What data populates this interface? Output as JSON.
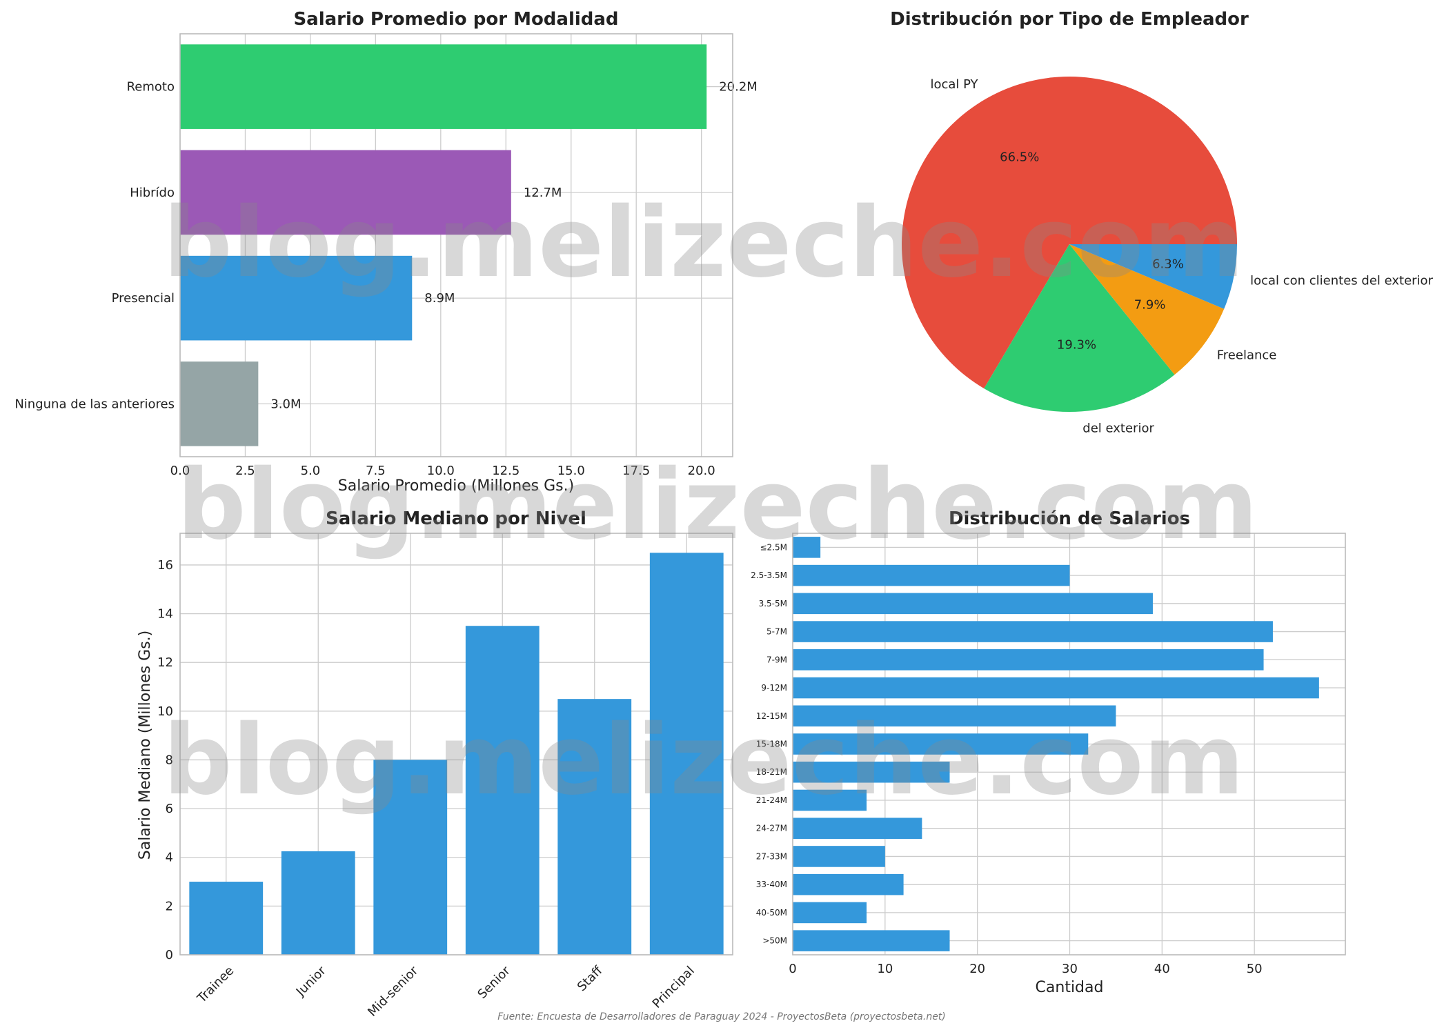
{
  "watermark": "blog.melizeche.com",
  "source": "Fuente: Encuesta de Desarrolladores de Paraguay 2024 - ProyectosBeta (proyectosbeta.net)",
  "chart_data": [
    {
      "id": "modalidad",
      "type": "bar",
      "orientation": "horizontal",
      "title": "Salario Promedio por Modalidad",
      "xlabel": "Salario Promedio (Millones Gs.)",
      "ylabel": "",
      "categories": [
        "Remoto",
        "Hibrído",
        "Presencial",
        "Ninguna de las anteriores"
      ],
      "values": [
        20.2,
        12.7,
        8.9,
        3.0
      ],
      "value_labels": [
        "20.2M",
        "12.7M",
        "8.9M",
        "3.0M"
      ],
      "colors": [
        "#2ecc71",
        "#9b59b6",
        "#3498db",
        "#95a5a6"
      ],
      "xlim": [
        0,
        21.2
      ],
      "xticks": [
        0,
        2.5,
        5,
        7.5,
        10,
        12.5,
        15,
        17.5,
        20
      ],
      "xtick_labels": [
        "0.0",
        "2.5",
        "5.0",
        "7.5",
        "10.0",
        "12.5",
        "15.0",
        "17.5",
        "20.0"
      ],
      "grid": true
    },
    {
      "id": "empleador",
      "type": "pie",
      "title": "Distribución por Tipo de Empleador",
      "labels": [
        "local PY",
        "del exterior",
        "Freelance",
        "local con clientes del exterior"
      ],
      "values": [
        66.5,
        19.3,
        7.9,
        6.3
      ],
      "pct_labels": [
        "66.5%",
        "19.3%",
        "7.9%",
        "6.3%"
      ],
      "colors": [
        "#e74c3c",
        "#2ecc71",
        "#f39c12",
        "#3498db"
      ]
    },
    {
      "id": "nivel",
      "type": "bar",
      "orientation": "vertical",
      "title": "Salario Mediano por Nivel",
      "xlabel": "",
      "ylabel": "Salario Mediano (Millones Gs.)",
      "categories": [
        "Trainee",
        "Junior",
        "Mid-senior",
        "Senior",
        "Staff",
        "Principal"
      ],
      "values": [
        3.0,
        4.25,
        8.0,
        13.5,
        10.5,
        16.5
      ],
      "color": "#3498db",
      "ylim": [
        0,
        17.3
      ],
      "yticks": [
        0,
        2,
        4,
        6,
        8,
        10,
        12,
        14,
        16
      ],
      "grid": true
    },
    {
      "id": "distribucion",
      "type": "bar",
      "orientation": "horizontal",
      "title": "Distribución de Salarios",
      "xlabel": "Cantidad",
      "ylabel": "",
      "categories": [
        "≤2.5M",
        "2.5-3.5M",
        "3.5-5M",
        "5-7M",
        "7-9M",
        "9-12M",
        "12-15M",
        "15-18M",
        "18-21M",
        "21-24M",
        "24-27M",
        "27-33M",
        "33-40M",
        "40-50M",
        ">50M"
      ],
      "values": [
        3,
        30,
        39,
        52,
        51,
        57,
        35,
        32,
        17,
        8,
        14,
        10,
        12,
        8,
        17
      ],
      "color": "#3498db",
      "xlim": [
        0,
        59.85
      ],
      "xticks": [
        0,
        10,
        20,
        30,
        40,
        50
      ],
      "grid": true
    }
  ]
}
